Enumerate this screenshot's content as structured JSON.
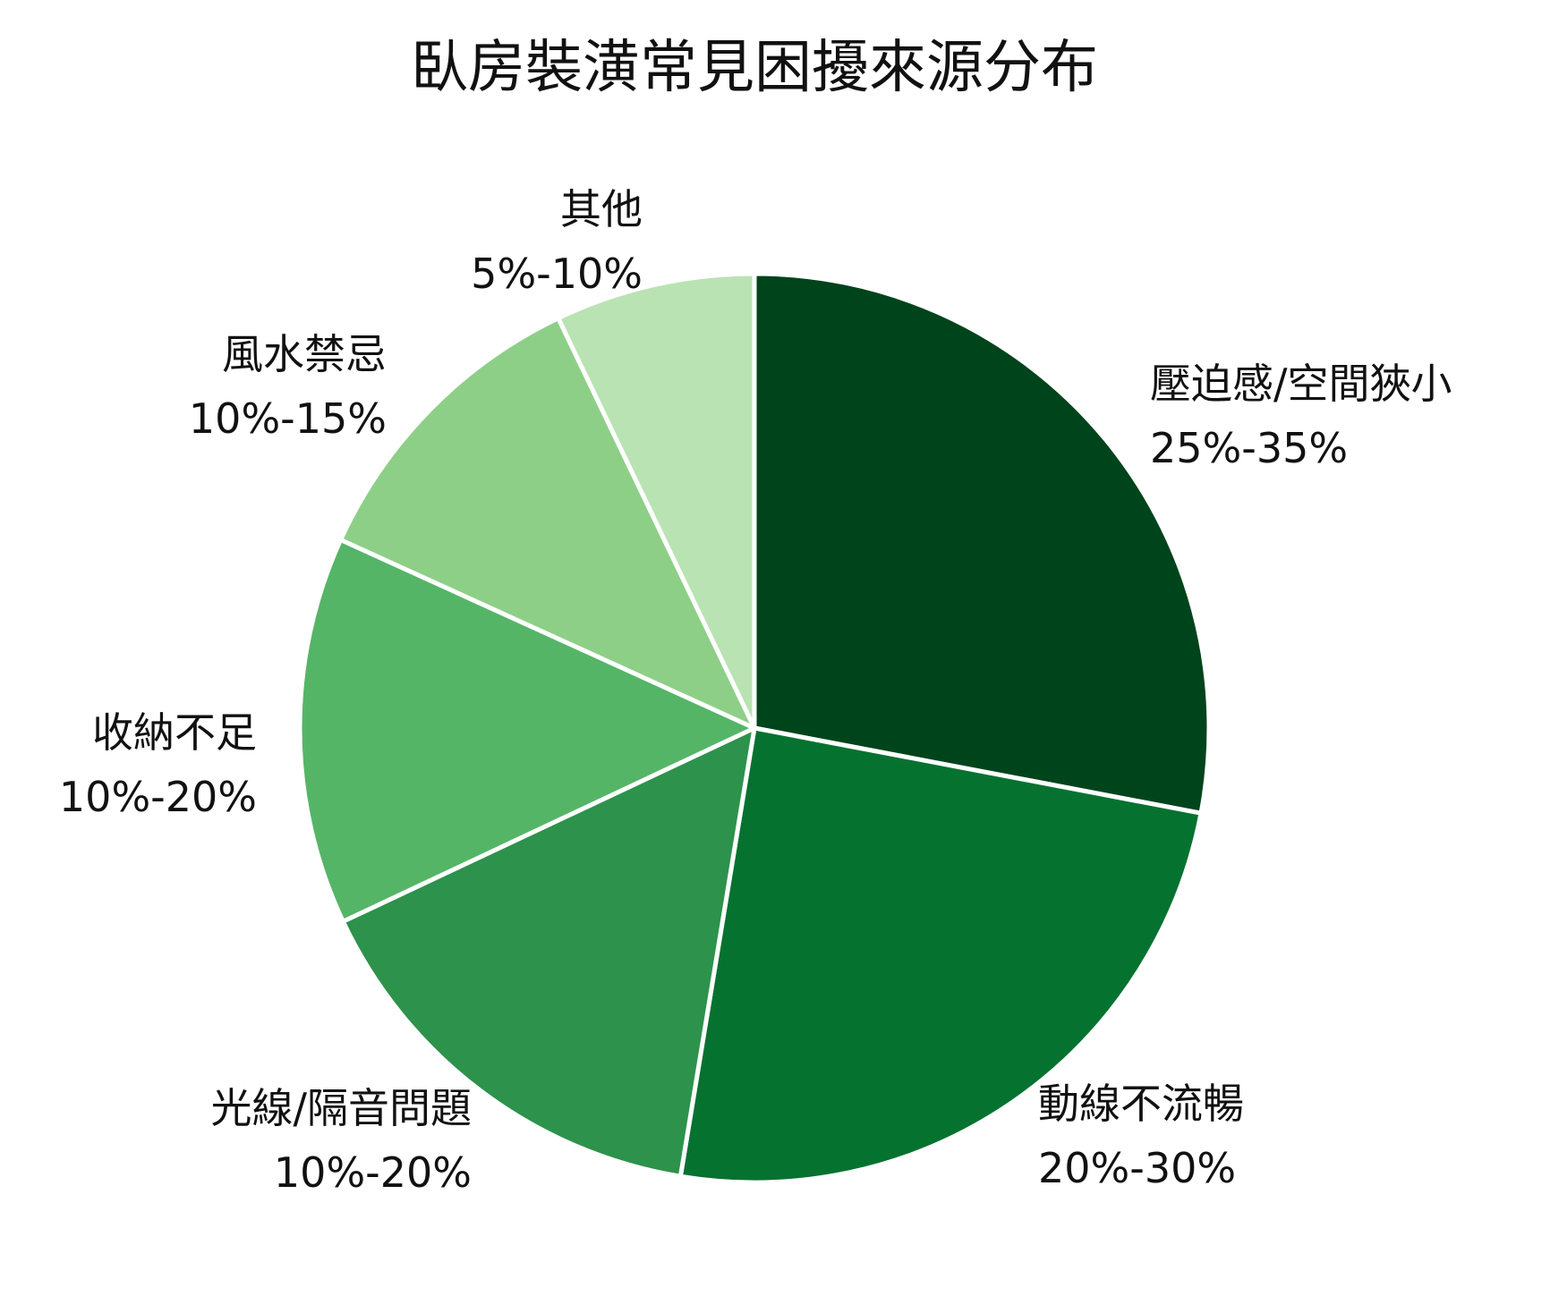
{
  "chart_data": {
    "type": "pie",
    "title": "臥房裝潢常見困擾來源分布",
    "start": "12 o'clock",
    "direction": "clockwise",
    "slices": [
      {
        "label": "壓迫感/空間狹小",
        "range_text": "25%-35%",
        "value": 28.0,
        "color": "#00441b"
      },
      {
        "label": "動線不流暢",
        "range_text": "20%-30%",
        "value": 24.6,
        "color": "#067230"
      },
      {
        "label": "光線/隔音問題",
        "range_text": "10%-20%",
        "value": 15.4,
        "color": "#2d924b"
      },
      {
        "label": "收納不足",
        "range_text": "10%-20%",
        "value": 13.8,
        "color": "#55b567"
      },
      {
        "label": "風水禁忌",
        "range_text": "10%-15%",
        "value": 11.1,
        "color": "#8ecf88"
      },
      {
        "label": "其他",
        "range_text": "5%-10%",
        "value": 7.1,
        "color": "#b9e3b2"
      }
    ]
  }
}
